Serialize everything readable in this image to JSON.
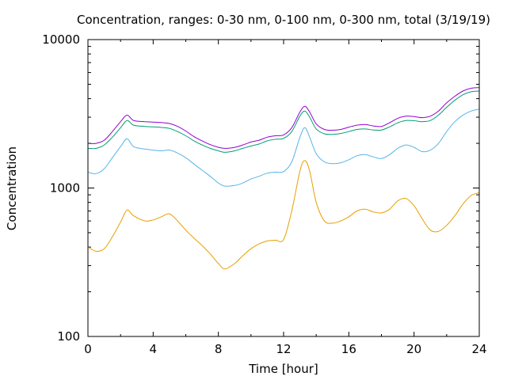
{
  "chart_data": {
    "type": "line",
    "title": "Concentration, ranges: 0-30 nm, 0-100 nm, 0-300 nm, total (3/19/19)",
    "xlabel": "Time [hour]",
    "ylabel": "Concentration",
    "xlim": [
      0,
      24
    ],
    "ylim": [
      100,
      10000
    ],
    "yscale": "log",
    "grid": false,
    "xticks": [
      0,
      4,
      8,
      12,
      16,
      20,
      24
    ],
    "yticks": [
      100,
      1000,
      10000
    ],
    "x": [
      0,
      0.5,
      1,
      1.5,
      2,
      2.4,
      2.8,
      3.5,
      4,
      4.5,
      5,
      5.5,
      6,
      6.5,
      7,
      7.5,
      8,
      8.4,
      9,
      9.5,
      10,
      10.5,
      11,
      11.5,
      12,
      12.5,
      13,
      13.3,
      13.6,
      14,
      14.5,
      15,
      15.5,
      16,
      16.5,
      17,
      17.5,
      18,
      18.5,
      19,
      19.5,
      20,
      20.5,
      21,
      21.5,
      22,
      22.5,
      23,
      23.5,
      24
    ],
    "series": [
      {
        "color": "#e69f00",
        "values": [
          400,
          375,
          390,
          470,
          590,
          710,
          650,
          600,
          610,
          640,
          670,
          600,
          520,
          460,
          410,
          360,
          310,
          285,
          310,
          350,
          390,
          420,
          440,
          445,
          450,
          700,
          1300,
          1530,
          1300,
          800,
          600,
          580,
          600,
          640,
          700,
          720,
          690,
          680,
          720,
          820,
          850,
          760,
          620,
          520,
          510,
          560,
          650,
          780,
          890,
          930
        ]
      },
      {
        "color": "#56b4e9",
        "values": [
          1280,
          1250,
          1350,
          1600,
          1900,
          2150,
          1900,
          1830,
          1800,
          1780,
          1800,
          1720,
          1600,
          1450,
          1320,
          1200,
          1080,
          1030,
          1040,
          1080,
          1150,
          1200,
          1260,
          1280,
          1290,
          1500,
          2200,
          2550,
          2200,
          1700,
          1500,
          1460,
          1480,
          1550,
          1650,
          1680,
          1620,
          1580,
          1680,
          1850,
          1950,
          1880,
          1760,
          1800,
          2000,
          2400,
          2800,
          3100,
          3300,
          3400
        ]
      },
      {
        "color": "#009e73",
        "values": [
          1850,
          1850,
          1950,
          2200,
          2550,
          2850,
          2650,
          2600,
          2580,
          2560,
          2520,
          2400,
          2250,
          2080,
          1950,
          1850,
          1780,
          1740,
          1780,
          1850,
          1920,
          1980,
          2080,
          2130,
          2160,
          2400,
          3050,
          3300,
          3000,
          2500,
          2320,
          2300,
          2330,
          2400,
          2480,
          2500,
          2460,
          2460,
          2580,
          2750,
          2850,
          2840,
          2800,
          2850,
          3100,
          3500,
          3900,
          4250,
          4450,
          4500
        ]
      },
      {
        "color": "#9400d3",
        "values": [
          2000,
          2000,
          2100,
          2400,
          2800,
          3100,
          2850,
          2800,
          2780,
          2760,
          2720,
          2600,
          2420,
          2220,
          2080,
          1960,
          1880,
          1850,
          1880,
          1950,
          2040,
          2100,
          2200,
          2250,
          2280,
          2550,
          3250,
          3550,
          3250,
          2700,
          2480,
          2450,
          2480,
          2570,
          2650,
          2680,
          2620,
          2600,
          2750,
          2950,
          3050,
          3030,
          2980,
          3050,
          3300,
          3750,
          4150,
          4500,
          4700,
          4750
        ]
      }
    ]
  }
}
